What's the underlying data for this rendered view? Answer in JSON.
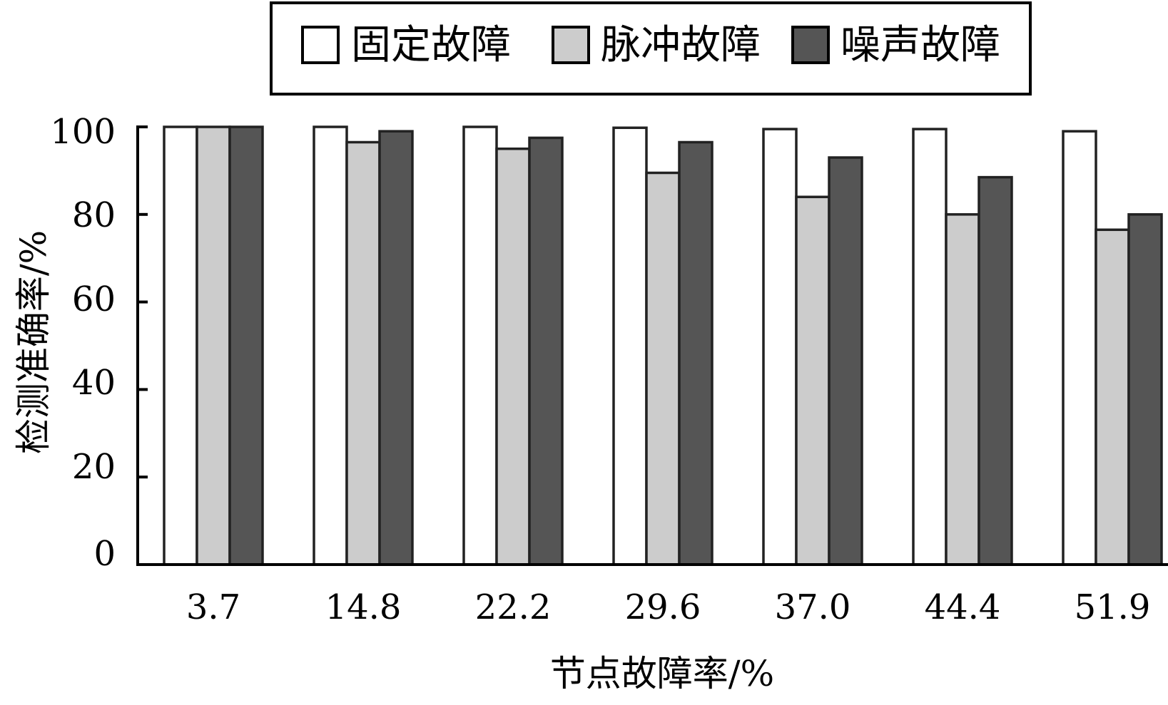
{
  "chart_data": {
    "type": "bar",
    "categories": [
      "3.7",
      "14.8",
      "22.2",
      "29.6",
      "37.0",
      "44.4",
      "51.9"
    ],
    "series": [
      {
        "name": "固定故障",
        "values": [
          100,
          100,
          100,
          99.8,
          99.5,
          99.5,
          99.0
        ],
        "color": "#ffffff"
      },
      {
        "name": "脉冲故障",
        "values": [
          100,
          96.5,
          95.0,
          89.5,
          84.0,
          80.0,
          76.5
        ],
        "color": "#cccccc"
      },
      {
        "name": "噪声故障",
        "values": [
          100,
          99.0,
          97.5,
          96.5,
          93.0,
          88.5,
          80.0
        ],
        "color": "#555555"
      }
    ],
    "xlabel": "节点故障率/%",
    "ylabel": "检测准确率/%",
    "ylim": [
      0,
      100
    ],
    "yticks": [
      "0",
      "20",
      "40",
      "60",
      "80",
      "100"
    ],
    "grid": false,
    "legend_position": "top"
  }
}
